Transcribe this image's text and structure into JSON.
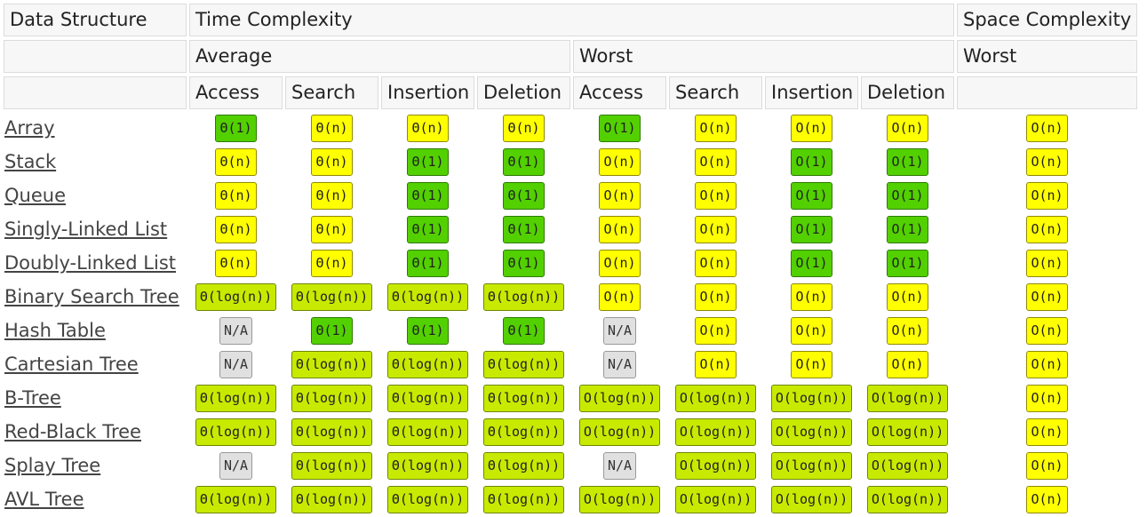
{
  "headers": {
    "data_structure": "Data Structure",
    "time_complexity": "Time Complexity",
    "space_complexity": "Space Complexity",
    "average": "Average",
    "worst": "Worst",
    "space_worst": "Worst",
    "ops": [
      "Access",
      "Search",
      "Insertion",
      "Deletion",
      "Access",
      "Search",
      "Insertion",
      "Deletion"
    ]
  },
  "colors": {
    "good": "#53d000",
    "fair": "#c8ea00",
    "bad": "#ffff00",
    "na": "#e0e0e0"
  },
  "rows": [
    {
      "name": "Array",
      "cells": [
        [
          "Θ(1)",
          "good"
        ],
        [
          "Θ(n)",
          "bad"
        ],
        [
          "Θ(n)",
          "bad"
        ],
        [
          "Θ(n)",
          "bad"
        ],
        [
          "O(1)",
          "good"
        ],
        [
          "O(n)",
          "bad"
        ],
        [
          "O(n)",
          "bad"
        ],
        [
          "O(n)",
          "bad"
        ],
        [
          "O(n)",
          "bad"
        ]
      ]
    },
    {
      "name": "Stack",
      "cells": [
        [
          "Θ(n)",
          "bad"
        ],
        [
          "Θ(n)",
          "bad"
        ],
        [
          "Θ(1)",
          "good"
        ],
        [
          "Θ(1)",
          "good"
        ],
        [
          "O(n)",
          "bad"
        ],
        [
          "O(n)",
          "bad"
        ],
        [
          "O(1)",
          "good"
        ],
        [
          "O(1)",
          "good"
        ],
        [
          "O(n)",
          "bad"
        ]
      ]
    },
    {
      "name": "Queue",
      "cells": [
        [
          "Θ(n)",
          "bad"
        ],
        [
          "Θ(n)",
          "bad"
        ],
        [
          "Θ(1)",
          "good"
        ],
        [
          "Θ(1)",
          "good"
        ],
        [
          "O(n)",
          "bad"
        ],
        [
          "O(n)",
          "bad"
        ],
        [
          "O(1)",
          "good"
        ],
        [
          "O(1)",
          "good"
        ],
        [
          "O(n)",
          "bad"
        ]
      ]
    },
    {
      "name": "Singly-Linked List",
      "cells": [
        [
          "Θ(n)",
          "bad"
        ],
        [
          "Θ(n)",
          "bad"
        ],
        [
          "Θ(1)",
          "good"
        ],
        [
          "Θ(1)",
          "good"
        ],
        [
          "O(n)",
          "bad"
        ],
        [
          "O(n)",
          "bad"
        ],
        [
          "O(1)",
          "good"
        ],
        [
          "O(1)",
          "good"
        ],
        [
          "O(n)",
          "bad"
        ]
      ]
    },
    {
      "name": "Doubly-Linked List",
      "cells": [
        [
          "Θ(n)",
          "bad"
        ],
        [
          "Θ(n)",
          "bad"
        ],
        [
          "Θ(1)",
          "good"
        ],
        [
          "Θ(1)",
          "good"
        ],
        [
          "O(n)",
          "bad"
        ],
        [
          "O(n)",
          "bad"
        ],
        [
          "O(1)",
          "good"
        ],
        [
          "O(1)",
          "good"
        ],
        [
          "O(n)",
          "bad"
        ]
      ]
    },
    {
      "name": "Binary Search Tree",
      "cells": [
        [
          "Θ(log(n))",
          "fair"
        ],
        [
          "Θ(log(n))",
          "fair"
        ],
        [
          "Θ(log(n))",
          "fair"
        ],
        [
          "Θ(log(n))",
          "fair"
        ],
        [
          "O(n)",
          "bad"
        ],
        [
          "O(n)",
          "bad"
        ],
        [
          "O(n)",
          "bad"
        ],
        [
          "O(n)",
          "bad"
        ],
        [
          "O(n)",
          "bad"
        ]
      ]
    },
    {
      "name": "Hash Table",
      "cells": [
        [
          "N/A",
          "na"
        ],
        [
          "Θ(1)",
          "good"
        ],
        [
          "Θ(1)",
          "good"
        ],
        [
          "Θ(1)",
          "good"
        ],
        [
          "N/A",
          "na"
        ],
        [
          "O(n)",
          "bad"
        ],
        [
          "O(n)",
          "bad"
        ],
        [
          "O(n)",
          "bad"
        ],
        [
          "O(n)",
          "bad"
        ]
      ]
    },
    {
      "name": "Cartesian Tree",
      "cells": [
        [
          "N/A",
          "na"
        ],
        [
          "Θ(log(n))",
          "fair"
        ],
        [
          "Θ(log(n))",
          "fair"
        ],
        [
          "Θ(log(n))",
          "fair"
        ],
        [
          "N/A",
          "na"
        ],
        [
          "O(n)",
          "bad"
        ],
        [
          "O(n)",
          "bad"
        ],
        [
          "O(n)",
          "bad"
        ],
        [
          "O(n)",
          "bad"
        ]
      ]
    },
    {
      "name": "B-Tree",
      "cells": [
        [
          "Θ(log(n))",
          "fair"
        ],
        [
          "Θ(log(n))",
          "fair"
        ],
        [
          "Θ(log(n))",
          "fair"
        ],
        [
          "Θ(log(n))",
          "fair"
        ],
        [
          "O(log(n))",
          "fair"
        ],
        [
          "O(log(n))",
          "fair"
        ],
        [
          "O(log(n))",
          "fair"
        ],
        [
          "O(log(n))",
          "fair"
        ],
        [
          "O(n)",
          "bad"
        ]
      ]
    },
    {
      "name": "Red-Black Tree",
      "cells": [
        [
          "Θ(log(n))",
          "fair"
        ],
        [
          "Θ(log(n))",
          "fair"
        ],
        [
          "Θ(log(n))",
          "fair"
        ],
        [
          "Θ(log(n))",
          "fair"
        ],
        [
          "O(log(n))",
          "fair"
        ],
        [
          "O(log(n))",
          "fair"
        ],
        [
          "O(log(n))",
          "fair"
        ],
        [
          "O(log(n))",
          "fair"
        ],
        [
          "O(n)",
          "bad"
        ]
      ]
    },
    {
      "name": "Splay Tree",
      "cells": [
        [
          "N/A",
          "na"
        ],
        [
          "Θ(log(n))",
          "fair"
        ],
        [
          "Θ(log(n))",
          "fair"
        ],
        [
          "Θ(log(n))",
          "fair"
        ],
        [
          "N/A",
          "na"
        ],
        [
          "O(log(n))",
          "fair"
        ],
        [
          "O(log(n))",
          "fair"
        ],
        [
          "O(log(n))",
          "fair"
        ],
        [
          "O(n)",
          "bad"
        ]
      ]
    },
    {
      "name": "AVL Tree",
      "cells": [
        [
          "Θ(log(n))",
          "fair"
        ],
        [
          "Θ(log(n))",
          "fair"
        ],
        [
          "Θ(log(n))",
          "fair"
        ],
        [
          "Θ(log(n))",
          "fair"
        ],
        [
          "O(log(n))",
          "fair"
        ],
        [
          "O(log(n))",
          "fair"
        ],
        [
          "O(log(n))",
          "fair"
        ],
        [
          "O(log(n))",
          "fair"
        ],
        [
          "O(n)",
          "bad"
        ]
      ]
    }
  ]
}
